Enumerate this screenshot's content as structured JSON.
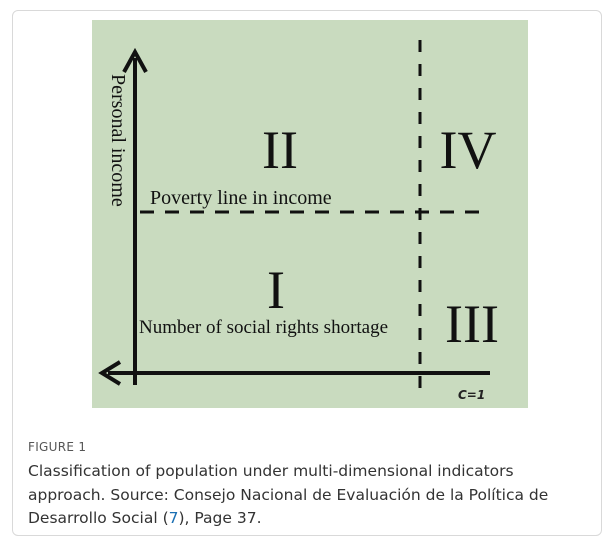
{
  "figure": {
    "y_axis_label": "Personal income",
    "poverty_line_label": "Poverty line in income",
    "x_axis_label": "Number of social rights shortage",
    "threshold_label": "C=1",
    "quadrants": [
      "II",
      "IV",
      "I",
      "III"
    ]
  },
  "caption": {
    "label": "FIGURE 1",
    "text_before": "Classification of population under multi-dimensional indicators approach. Source: Consejo Nacional de Evaluación de la Política de Desarrollo Social (",
    "citation": "7",
    "text_after": "), Page 37."
  }
}
